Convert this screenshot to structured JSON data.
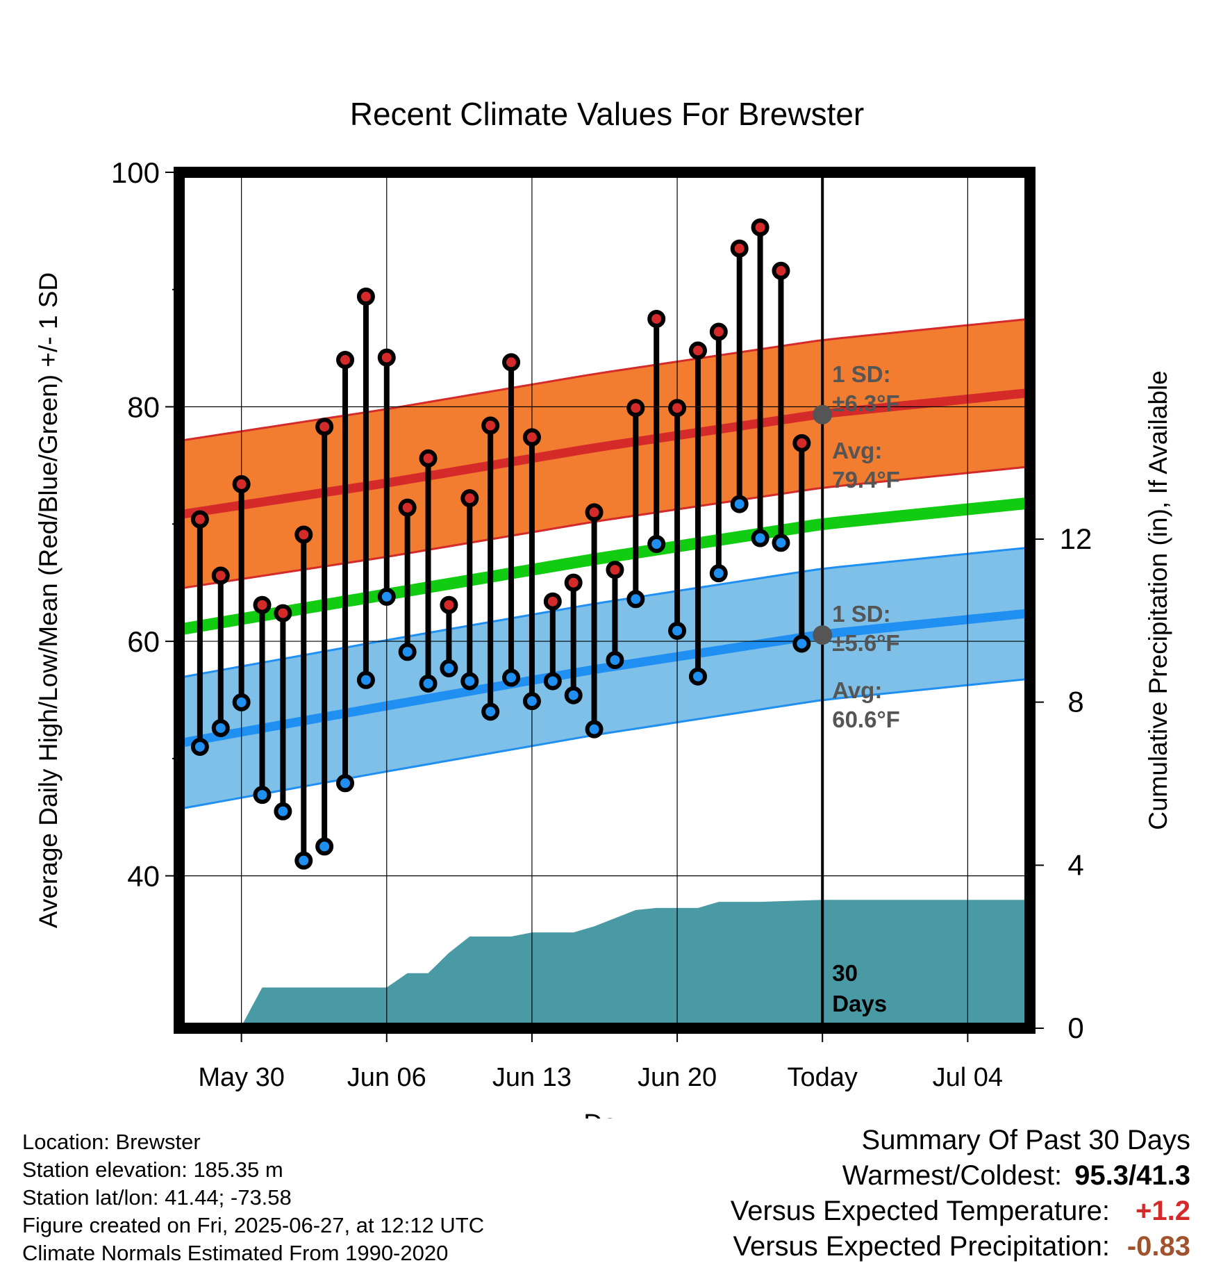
{
  "chart_data": {
    "type": "line",
    "title": "Recent Climate Values For Brewster",
    "xlabel": "Day",
    "ylabel": "Average Daily High/Low/Mean (Red/Blue/Green) +/- 1 SD",
    "y2label": "Cumulative Precipitation (in), If Available",
    "ylim": [
      27,
      100
    ],
    "y_ticks": [
      40,
      60,
      80,
      100
    ],
    "y2lim": [
      0,
      21
    ],
    "y2_ticks": [
      0,
      4,
      8,
      12
    ],
    "x_tick_labels": [
      "May 30",
      "Jun 06",
      "Jun 13",
      "Jun 20",
      "Today",
      "Jul 04"
    ],
    "x_range": [
      "2025-05-27",
      "2025-07-07"
    ],
    "today": "2025-06-27",
    "days": [
      "2025-05-28",
      "2025-05-29",
      "2025-05-30",
      "2025-05-31",
      "2025-06-01",
      "2025-06-02",
      "2025-06-03",
      "2025-06-04",
      "2025-06-05",
      "2025-06-06",
      "2025-06-07",
      "2025-06-08",
      "2025-06-09",
      "2025-06-10",
      "2025-06-11",
      "2025-06-12",
      "2025-06-13",
      "2025-06-14",
      "2025-06-15",
      "2025-06-16",
      "2025-06-17",
      "2025-06-18",
      "2025-06-19",
      "2025-06-20",
      "2025-06-21",
      "2025-06-22",
      "2025-06-23",
      "2025-06-24",
      "2025-06-25",
      "2025-06-26"
    ],
    "observed_high": [
      70.4,
      65.6,
      73.4,
      63.1,
      62.4,
      69.1,
      78.3,
      84.0,
      89.4,
      84.2,
      71.4,
      75.6,
      63.1,
      72.2,
      78.4,
      83.8,
      77.4,
      63.4,
      65.0,
      71.0,
      66.1,
      79.9,
      87.5,
      79.9,
      84.8,
      86.4,
      93.5,
      95.3,
      91.6,
      76.9
    ],
    "observed_low": [
      51.0,
      52.6,
      54.8,
      46.9,
      45.5,
      41.3,
      42.5,
      47.9,
      56.7,
      63.8,
      59.1,
      56.4,
      57.7,
      56.6,
      54.0,
      56.9,
      54.9,
      56.6,
      55.4,
      52.5,
      58.4,
      63.6,
      68.3,
      60.9,
      57.0,
      65.8,
      71.7,
      68.8,
      68.4,
      59.8
    ],
    "series": [
      {
        "name": "normal high",
        "x": [
          "2025-05-27",
          "2025-06-06",
          "2025-06-16",
          "2025-06-27",
          "2025-07-07"
        ],
        "values": [
          70.8,
          73.5,
          76.5,
          79.4,
          81.2
        ],
        "sd": 6.3,
        "color": "#d42a2a",
        "band_color": "#f27c30"
      },
      {
        "name": "normal low",
        "x": [
          "2025-05-27",
          "2025-06-06",
          "2025-06-16",
          "2025-06-27",
          "2025-07-07"
        ],
        "values": [
          51.3,
          54.5,
          57.6,
          60.6,
          62.4
        ],
        "sd": 5.6,
        "color": "#1f8ff2",
        "band_color": "#7ec0e8"
      },
      {
        "name": "normal mean",
        "x": [
          "2025-05-27",
          "2025-06-06",
          "2025-06-16",
          "2025-06-27",
          "2025-07-07"
        ],
        "values": [
          61.0,
          64.0,
          67.0,
          70.0,
          71.8
        ],
        "color": "#11cc11"
      }
    ],
    "precip_cumulative": {
      "x": [
        "2025-05-27",
        "2025-05-30",
        "2025-05-31",
        "2025-06-06",
        "2025-06-07",
        "2025-06-08",
        "2025-06-09",
        "2025-06-10",
        "2025-06-12",
        "2025-06-13",
        "2025-06-14",
        "2025-06-15",
        "2025-06-16",
        "2025-06-17",
        "2025-06-18",
        "2025-06-19",
        "2025-06-21",
        "2025-06-22",
        "2025-06-24",
        "2025-06-27",
        "2025-07-07"
      ],
      "values": [
        0.0,
        0.05,
        1.0,
        1.0,
        1.35,
        1.35,
        1.85,
        2.25,
        2.25,
        2.35,
        2.35,
        2.35,
        2.5,
        2.7,
        2.9,
        2.95,
        2.95,
        3.1,
        3.1,
        3.15,
        3.15
      ],
      "color": "#4a9aa6"
    },
    "annotations": {
      "high_sd": "1 SD:\n±6.3°F",
      "high_avg": "Avg:\n79.4°F",
      "low_sd": "1 SD:\n±5.6°F",
      "low_avg": "Avg:\n60.6°F",
      "window": "30\nDays"
    }
  },
  "info": {
    "location": "Location: Brewster",
    "elevation": "Station elevation: 185.35 m",
    "latlon": "Station lat/lon: 41.44; -73.58",
    "created": "Figure created on Fri, 2025-06-27, at 12:12 UTC",
    "normals": "Climate Normals Estimated From 1990-2020"
  },
  "summary": {
    "heading": "Summary Of Past 30 Days",
    "warm_cold_label": "Warmest/Coldest:",
    "warm_cold_value": "95.3/41.3",
    "temp_label": "Versus Expected Temperature:",
    "temp_value": "+1.2",
    "temp_color": "#d42a2a",
    "precip_label": "Versus Expected Precipitation:",
    "precip_value": "-0.83",
    "precip_color": "#a0522d"
  }
}
